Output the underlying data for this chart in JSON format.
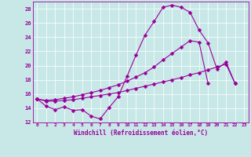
{
  "xlabel": "Windchill (Refroidissement éolien,°C)",
  "bg_color": "#c8e8e8",
  "line_color": "#990099",
  "marker": "D",
  "markersize": 2.5,
  "linewidth": 0.8,
  "xlim": [
    -0.5,
    23.5
  ],
  "ylim": [
    12,
    29
  ],
  "xticks": [
    0,
    1,
    2,
    3,
    4,
    5,
    6,
    7,
    8,
    9,
    10,
    11,
    12,
    13,
    14,
    15,
    16,
    17,
    18,
    19,
    20,
    21,
    22,
    23
  ],
  "yticks": [
    12,
    14,
    16,
    18,
    20,
    22,
    24,
    26,
    28
  ],
  "grid_color": "#ffffff",
  "line1_x": [
    0,
    1,
    2,
    3,
    4,
    5,
    6,
    7,
    8,
    9,
    10,
    11,
    12,
    13,
    14,
    15,
    16,
    17,
    18,
    19,
    20,
    21,
    22
  ],
  "line1_y": [
    15.3,
    14.3,
    13.8,
    14.2,
    13.7,
    13.8,
    12.9,
    12.5,
    14.1,
    15.6,
    18.5,
    21.5,
    24.3,
    26.2,
    28.2,
    28.5,
    28.2,
    27.5,
    25.0,
    23.2,
    19.5,
    20.5,
    17.5
  ],
  "line2_x": [
    0,
    1,
    2,
    3,
    4,
    5,
    6,
    7,
    8,
    9,
    10,
    11,
    12,
    13,
    14,
    15,
    16,
    17,
    18,
    19,
    20,
    21,
    22
  ],
  "line2_y": [
    15.3,
    15.0,
    15.0,
    15.1,
    15.2,
    15.4,
    15.6,
    15.8,
    16.0,
    16.2,
    16.5,
    16.8,
    17.1,
    17.4,
    17.7,
    18.0,
    18.3,
    18.7,
    19.0,
    19.4,
    19.8,
    20.2,
    17.5
  ],
  "line3_x": [
    0,
    1,
    2,
    3,
    4,
    5,
    6,
    7,
    8,
    9,
    10,
    11,
    12,
    13,
    14,
    15,
    16,
    17,
    18,
    19
  ],
  "line3_y": [
    15.3,
    15.1,
    15.2,
    15.4,
    15.6,
    15.9,
    16.2,
    16.5,
    16.9,
    17.3,
    17.8,
    18.4,
    19.0,
    19.8,
    20.8,
    21.7,
    22.6,
    23.5,
    23.3,
    17.5
  ]
}
